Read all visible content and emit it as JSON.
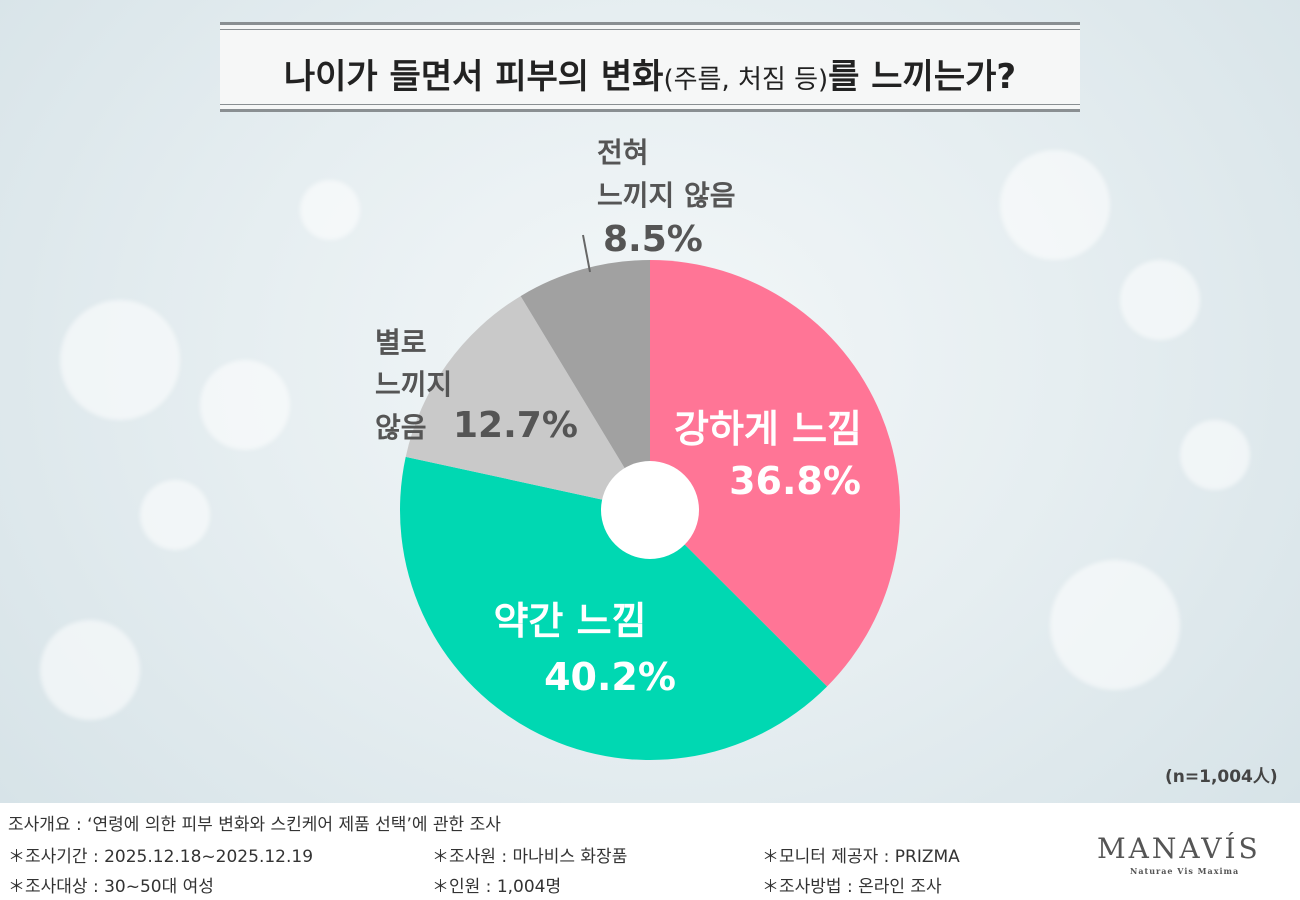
{
  "title": {
    "main_before": "나이가 들면서 피부의 변화",
    "paren": "(주름, 처짐 등)",
    "main_after": "를 느끼는가?"
  },
  "chart_data": {
    "type": "pie",
    "donut": true,
    "slices": [
      {
        "label": "강하게 느낌",
        "value": 36.8,
        "display": "36.8%",
        "color": "#ff7596"
      },
      {
        "label": "약간 느낌",
        "value": 40.2,
        "display": "40.2%",
        "color": "#00d8b2"
      },
      {
        "label": "별로 느끼지 않음",
        "value": 12.7,
        "display": "12.7%",
        "color": "#c9c9c9"
      },
      {
        "label": "전혀 느끼지 않음",
        "value": 8.5,
        "display": "8.5%",
        "color": "#a1a1a1"
      }
    ]
  },
  "labels": {
    "strong": {
      "name": "강하게 느낌",
      "pct": "36.8%"
    },
    "slight": {
      "name": "약간 느낌",
      "pct": "40.2%"
    },
    "rarely": {
      "line1": "별로",
      "line2": "느끼지",
      "line3": "않음",
      "pct": "12.7%"
    },
    "never": {
      "line1": "전혀",
      "line2": "느끼지 않음",
      "pct": "8.5%"
    }
  },
  "sample_note": "(n=1,004人)",
  "footer": {
    "overview": "조사개요 : ‘연령에 의한 피부 변화와 스킨케어 제품 선택’에 관한 조사",
    "period": "＊조사기간 : 2025.12.18~2025.12.19",
    "target": "＊조사대상 : 30~50대 여성",
    "researcher": "＊조사원 : 마나비스 화장품",
    "count": "＊인원 : 1,004명",
    "monitor": "＊모니터 제공자 : PRIZMA",
    "method": "＊조사방법 : 온라인 조사",
    "logo": "MANAVÍS",
    "logo_sub": "Naturae Vis Maxima"
  }
}
